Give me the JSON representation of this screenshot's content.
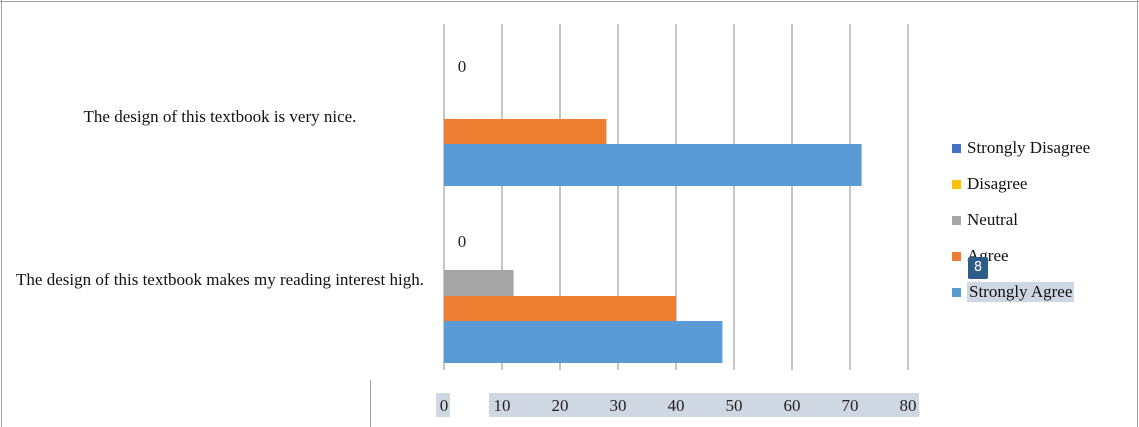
{
  "chart_data": {
    "type": "bar",
    "orientation": "horizontal",
    "categories": [
      "The design of this textbook makes my reading interest high.",
      "The design of this textbook is very nice."
    ],
    "series": [
      {
        "name": "Strongly Disagree",
        "color": "#4472c4",
        "values": [
          0,
          0
        ]
      },
      {
        "name": "Disagree",
        "color": "#ffc000",
        "values": [
          0,
          0
        ]
      },
      {
        "name": "Neutral",
        "color": "#a5a5a5",
        "values": [
          12,
          0
        ]
      },
      {
        "name": "Agree",
        "color": "#ed7d31",
        "values": [
          40,
          28
        ]
      },
      {
        "name": "Strongly Agree",
        "color": "#5b9bd5",
        "values": [
          48,
          72
        ]
      }
    ],
    "data_labels": [
      "0",
      "0"
    ],
    "xlim": [
      0,
      80
    ],
    "xticks": [
      "0",
      "10",
      "20",
      "30",
      "40",
      "50",
      "60",
      "70",
      "80"
    ],
    "grid": true,
    "legend_position": "right"
  },
  "overlay": {
    "badge_text": "8"
  }
}
